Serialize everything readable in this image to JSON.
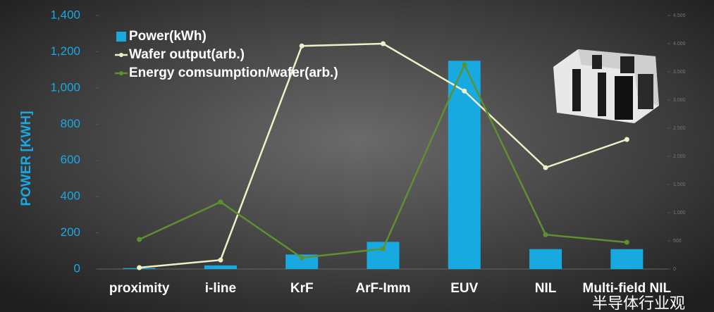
{
  "chart_data": {
    "type": "bar_line",
    "y_label": "POWER [KWH]",
    "categories": [
      "proximity",
      "i-line",
      "KrF",
      "ArF-Imm",
      "EUV",
      "NIL",
      "Multi-field NIL"
    ],
    "series": [
      {
        "name": "Power(kWh)",
        "type": "bar",
        "color": "#19a9e1",
        "values": [
          5,
          20,
          80,
          150,
          1150,
          110,
          110
        ]
      },
      {
        "name": "Wafer output(arb.)",
        "type": "line",
        "axis": "y2",
        "color": "#eef0c6",
        "values": [
          25,
          160,
          3960,
          4000,
          3160,
          1800,
          2300
        ]
      },
      {
        "name": "Energy comsumption/wafer(arb.)",
        "type": "line",
        "axis": "y2",
        "color": "#5f9030",
        "values": [
          525,
          1190,
          200,
          360,
          3625,
          610,
          475
        ]
      }
    ],
    "ylim": [
      0,
      1400
    ],
    "yticks": [
      0,
      200,
      400,
      600,
      800,
      {
        "value": 1000,
        "label": "1,000"
      },
      {
        "value": 1200,
        "label": "1,200"
      },
      {
        "value": 1400,
        "label": "1,400"
      }
    ],
    "y2lim": [
      0,
      4500
    ],
    "y2ticks": [
      0,
      500,
      {
        "value": 1000,
        "label": "1,000"
      },
      {
        "value": 1500,
        "label": "1,500"
      },
      {
        "value": 2000,
        "label": "2,000"
      },
      {
        "value": 2500,
        "label": "2,500"
      },
      {
        "value": 3000,
        "label": "3,000"
      },
      {
        "value": 3500,
        "label": "3,500"
      },
      {
        "value": 4000,
        "label": "4,000"
      },
      {
        "value": 4500,
        "label": "4,500"
      }
    ],
    "legend": "upper-left",
    "grid": false,
    "watermark": "半导体行业观"
  }
}
